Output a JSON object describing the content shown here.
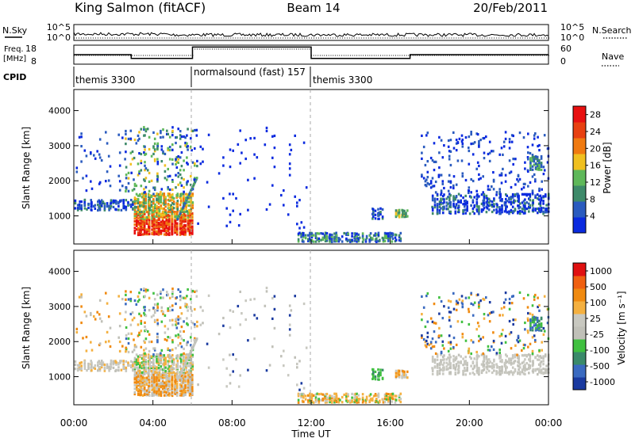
{
  "header": {
    "station": "King Salmon (fitACF)",
    "beam": "Beam 14",
    "date": "20/Feb/2011"
  },
  "small_panels": {
    "nsky_label": "N.Sky",
    "nsky_ticks": [
      "10^5",
      "10^0"
    ],
    "nsearch_label": "N.Search",
    "nsearch_ticks": [
      "10^5",
      "10^0"
    ],
    "freq_label_1": "Freq.",
    "freq_label_2": "[MHz]",
    "freq_ticks": [
      "18",
      "8"
    ],
    "nave_label": "Nave",
    "nave_ticks": [
      "60",
      "0"
    ],
    "cpid_label": "CPID"
  },
  "cpid_segments": [
    {
      "label": "themis 3300",
      "start_hour": 0
    },
    {
      "label": "normalsound (fast) 157",
      "start_hour": 6
    },
    {
      "label": "themis 3300",
      "start_hour": 12
    }
  ],
  "colors": {
    "power_scale": [
      "#0a2adf",
      "#2a5bbf",
      "#3e8a6a",
      "#5fb85a",
      "#f0c020",
      "#f07a10",
      "#e84010",
      "#e81010"
    ],
    "velocity_scale": [
      "#e01010",
      "#f06010",
      "#f08a10",
      "#f4b040",
      "#c8c8c0",
      "#c0c0b8",
      "#40c040",
      "#3a8a6a",
      "#3a6ac0",
      "#1a3aa0"
    ]
  },
  "chart_data": [
    {
      "type": "heatmap",
      "name": "Power",
      "ylabel": "Slant Range [km]",
      "y_ticks": [
        "1000",
        "2000",
        "3000",
        "4000"
      ],
      "ylim": [
        200,
        4600
      ],
      "xlim_hours": [
        0,
        24
      ],
      "colorbar_label": "Power [dB]",
      "colorbar_ticks": [
        "4",
        "8",
        "12",
        "16",
        "20",
        "24",
        "28"
      ],
      "colorbar_range": [
        0,
        30
      ]
    },
    {
      "type": "heatmap",
      "name": "Velocity",
      "ylabel": "Slant Range [km]",
      "y_ticks": [
        "1000",
        "2000",
        "3000",
        "4000"
      ],
      "ylim": [
        200,
        4600
      ],
      "xlim_hours": [
        0,
        24
      ],
      "xlabel": "Time UT",
      "x_ticks": [
        "00:00",
        "04:00",
        "08:00",
        "12:00",
        "16:00",
        "20:00",
        "00:00"
      ],
      "colorbar_label": "Velocity [m s⁻¹]",
      "colorbar_ticks": [
        "1000",
        "500",
        "100",
        "25",
        "-25",
        "-100",
        "-500",
        "-1000"
      ]
    }
  ],
  "frequency_trace": [
    {
      "start": 0,
      "end": 2.9,
      "value": 13
    },
    {
      "start": 2.9,
      "end": 6.0,
      "value": 11
    },
    {
      "start": 6.0,
      "end": 12.0,
      "value": 17
    },
    {
      "start": 12.0,
      "end": 17.0,
      "value": 11
    },
    {
      "start": 17.0,
      "end": 24.0,
      "value": 13
    }
  ]
}
